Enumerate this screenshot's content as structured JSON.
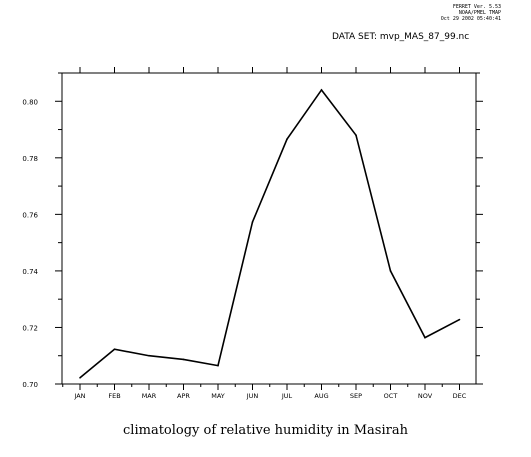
{
  "header": {
    "ferret_version": "FERRET Ver. 5.53",
    "institution": "NOAA/PMEL TMAP",
    "timestamp": "Oct 29 2002 05:40:41",
    "dataset_label": "DATA SET: mvp_MAS_87_99.nc"
  },
  "chart_data": {
    "type": "line",
    "title": "climatology of relative humidity in Masirah",
    "xlabel": "",
    "ylabel": "",
    "categories": [
      "JAN",
      "FEB",
      "MAR",
      "APR",
      "MAY",
      "JUN",
      "JUL",
      "AUG",
      "SEP",
      "OCT",
      "NOV",
      "DEC"
    ],
    "series": [
      {
        "values": [
          0.7022,
          0.7123,
          0.71,
          0.7087,
          0.7065,
          0.7573,
          0.7866,
          0.804,
          0.788,
          0.74,
          0.7164,
          0.7228
        ]
      }
    ],
    "ylim": [
      0.7,
      0.81
    ],
    "yticks": [
      "0.70",
      "0.72",
      "0.74",
      "0.76",
      "0.78",
      "0.80"
    ],
    "line_color": "#000000",
    "grid": false
  }
}
